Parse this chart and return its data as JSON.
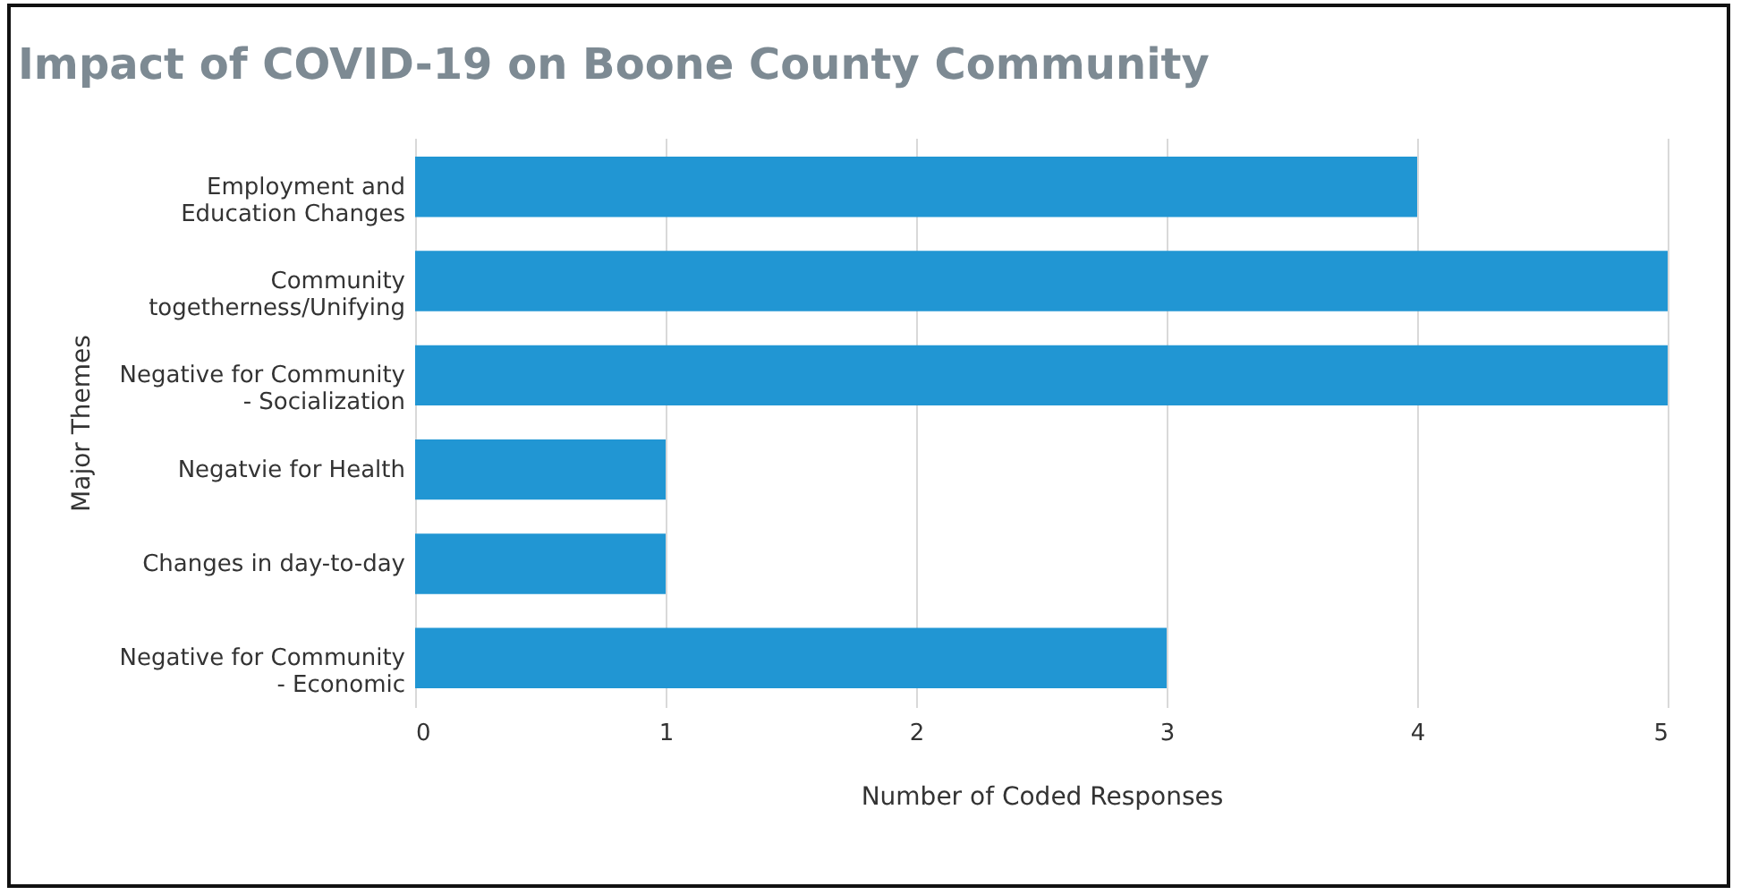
{
  "chart_data": {
    "type": "bar",
    "orientation": "horizontal",
    "title": "Impact of COVID-19 on Boone County Community",
    "xlabel": "Number of Coded Responses",
    "ylabel": "Major Themes",
    "categories": [
      "Employment and Education Changes",
      "Community togetherness/Unifying",
      "Negative for Community - Socialization",
      "Negatvie for Health",
      "Changes in day-to-day",
      "Negative for Community - Economic"
    ],
    "values": [
      4,
      5,
      5,
      1,
      1,
      3
    ],
    "color": "#2196d3",
    "xlim": [
      0,
      5
    ],
    "xticks": [
      0,
      1,
      2,
      3,
      4,
      5
    ],
    "grid": "x"
  }
}
